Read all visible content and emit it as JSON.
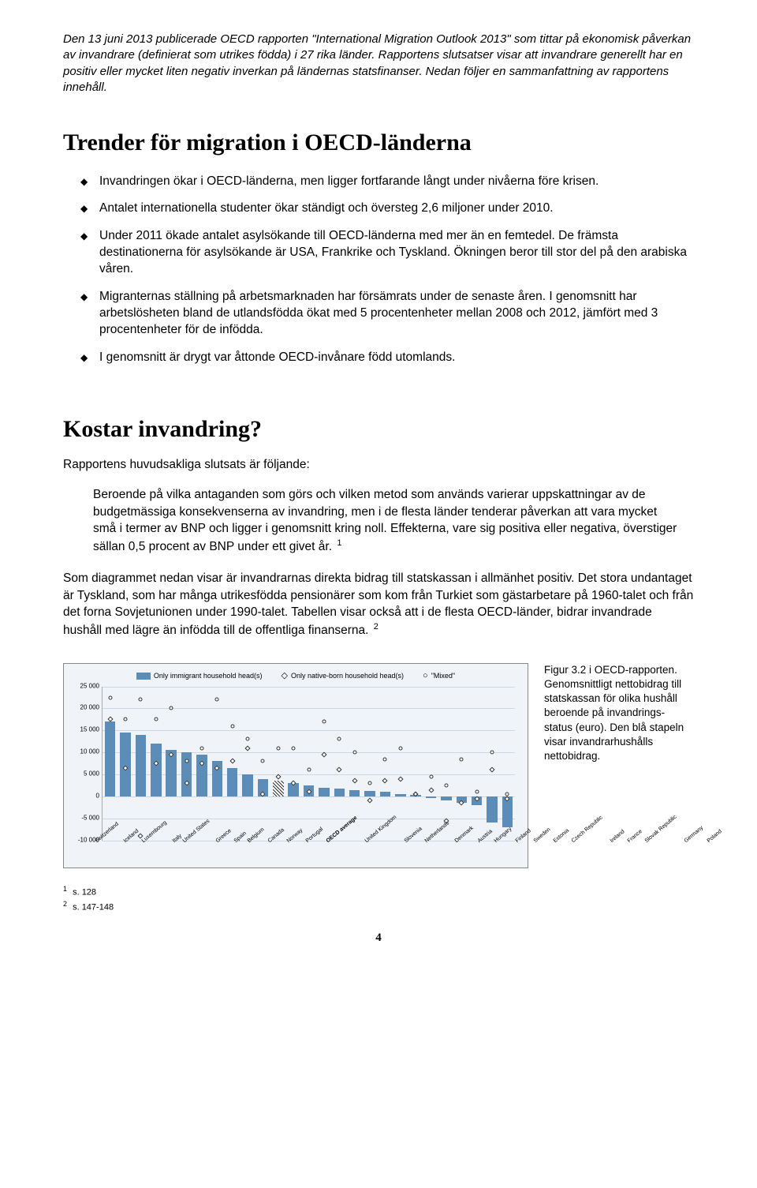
{
  "intro": "Den 13 juni 2013 publicerade OECD rapporten \"International Migration Outlook 2013\" som tittar på ekonomisk påverkan av invandrare (definierat som utrikes födda) i 27 rika länder. Rapportens slutsatser visar att invandrare generellt har en positiv eller mycket liten negativ inverkan på ländernas statsfinanser. Nedan följer en sammanfattning av rapportens innehåll.",
  "h1_trender": "Trender för migration i OECD-länderna",
  "bullets": [
    "Invandringen ökar i OECD-länderna, men ligger fortfarande långt under nivåerna före krisen.",
    "Antalet internationella studenter ökar ständigt och översteg 2,6 miljoner under 2010.",
    "Under 2011 ökade antalet asylsökande till OECD-länderna med mer än en femtedel. De främsta destinationerna för asylsökande är USA, Frankrike och Tyskland. Ökningen beror till stor del på den arabiska våren.",
    "Migranternas ställning på arbetsmarknaden har försämrats under de senaste åren. I genomsnitt har arbetslösheten bland de utlandsfödda ökat med 5 procentenheter mellan 2008 och 2012, jämfört med 3 procentenheter för de infödda.",
    "I genomsnitt är drygt var åttonde OECD-invånare född utomlands."
  ],
  "h1_kostar": "Kostar invandring?",
  "p_slutsats": "Rapportens huvudsakliga slutsats är följande:",
  "quote": "Beroende på vilka antaganden som görs och vilken metod som används varierar uppskattningar av de budgetmässiga konsekvenserna av invandring, men i de flesta länder tenderar påverkan att vara mycket små i termer av BNP och ligger i genomsnitt kring noll. Effekterna, vare sig positiva eller negativa, överstiger sällan 0,5 procent av BNP under ett givet år.",
  "fn1": "1",
  "p_diagram": "Som diagrammet nedan visar är invandrarnas direkta bidrag till statskassan i allmänhet positiv. Det stora undantaget är Tyskland, som har många utrikesfödda pensionärer som kom från Turkiet som gästarbetare på 1960-talet och från det forna Sovjetunionen under 1990-talet. Tabellen visar också att i de flesta OECD-länder, bidrar invandrade hushåll med lägre än infödda till de offentliga finanserna.",
  "fn2": "2",
  "chart": {
    "legend": {
      "bar": "Only immigrant household head(s)",
      "diamond": "Only native-born household head(s)",
      "circle": "\"Mixed\""
    },
    "ymin": -10000,
    "ymax": 25000,
    "yticks": [
      25000,
      20000,
      15000,
      10000,
      5000,
      0,
      -5000,
      -10000
    ],
    "ylabels": [
      "25 000",
      "20 000",
      "15 000",
      "10 000",
      "5 000",
      "0",
      "-5 000",
      "-10 000"
    ],
    "bar_color": "#5b8db8",
    "bg_color": "#f0f4f8",
    "grid_color": "#cfd8df",
    "countries": [
      {
        "name": "Switzerland",
        "bar": 17000,
        "d": 17500,
        "c": 22500
      },
      {
        "name": "Iceland",
        "bar": 14500,
        "d": 6500,
        "c": 17500
      },
      {
        "name": "Luxembourg",
        "bar": 14000,
        "d": -9000,
        "c": 22000
      },
      {
        "name": "Italy",
        "bar": 12000,
        "d": 7500,
        "c": 17500
      },
      {
        "name": "United States",
        "bar": 10500,
        "d": 9500,
        "c": 20000
      },
      {
        "name": "Greece",
        "bar": 10000,
        "d": 3000,
        "c": 8000
      },
      {
        "name": "Spain",
        "bar": 9500,
        "d": 7500,
        "c": 11000
      },
      {
        "name": "Belgium",
        "bar": 8000,
        "d": 6500,
        "c": 22000
      },
      {
        "name": "Canada",
        "bar": 6500,
        "d": 8000,
        "c": 16000
      },
      {
        "name": "Norway",
        "bar": 5000,
        "d": 11000,
        "c": 13000
      },
      {
        "name": "Portugal",
        "bar": 4000,
        "d": 500,
        "c": 8000
      },
      {
        "name": "OECD average",
        "bar": 3500,
        "d": 4500,
        "c": 11000,
        "hatched": true,
        "bold": true
      },
      {
        "name": "United Kingdom",
        "bar": 3000,
        "d": 3000,
        "c": 11000
      },
      {
        "name": "Slovenia",
        "bar": 2500,
        "d": 1000,
        "c": 6000
      },
      {
        "name": "Netherlands",
        "bar": 2000,
        "d": 9500,
        "c": 17000
      },
      {
        "name": "Denmark",
        "bar": 1800,
        "d": 6000,
        "c": 13000
      },
      {
        "name": "Austria",
        "bar": 1500,
        "d": 3500,
        "c": 10000
      },
      {
        "name": "Hungary",
        "bar": 1200,
        "d": -1000,
        "c": 3000
      },
      {
        "name": "Finland",
        "bar": 1000,
        "d": 3500,
        "c": 8500
      },
      {
        "name": "Sweden",
        "bar": 500,
        "d": 4000,
        "c": 11000
      },
      {
        "name": "Estonia",
        "bar": 300,
        "d": 500,
        "c": 500
      },
      {
        "name": "Czech Republic",
        "bar": -300,
        "d": 1500,
        "c": 4500
      },
      {
        "name": "Ireland",
        "bar": -1000,
        "d": -5500,
        "c": 2500
      },
      {
        "name": "France",
        "bar": -1500,
        "d": -1500,
        "c": 8500
      },
      {
        "name": "Slovak Republic",
        "bar": -2000,
        "d": -500,
        "c": 1000
      },
      {
        "name": "Germany",
        "bar": -6000,
        "d": 6000,
        "c": 10000
      },
      {
        "name": "Poland",
        "bar": -7000,
        "d": -500,
        "c": 500
      }
    ]
  },
  "caption": "Figur 3.2 i OECD-rapporten. Genomsnittligt nettobidrag till statskassan för olika hushåll beroende på invandrings-status (euro). Den blå stapeln visar invandrarhushålls nettobidrag.",
  "footnote1_num": "1",
  "footnote1_text": "s. 128",
  "footnote2_num": "2",
  "footnote2_text": "s. 147-148",
  "page_num": "4"
}
